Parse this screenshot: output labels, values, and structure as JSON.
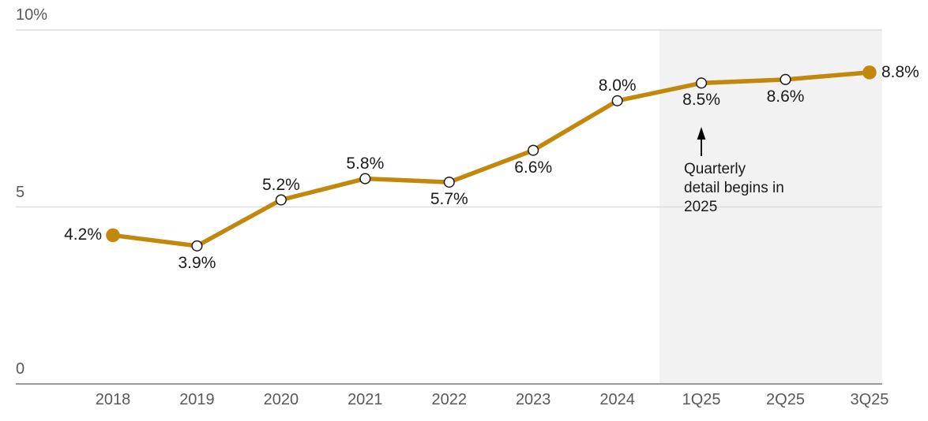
{
  "chart_data": {
    "type": "line",
    "title": "",
    "xlabel": "",
    "ylabel": "",
    "categories": [
      "2018",
      "2019",
      "2020",
      "2021",
      "2022",
      "2023",
      "2024",
      "1Q25",
      "2Q25",
      "3Q25"
    ],
    "values": [
      4.2,
      3.9,
      5.2,
      5.8,
      5.7,
      6.6,
      8.0,
      8.5,
      8.6,
      8.8
    ],
    "points": [
      {
        "category": "2018",
        "value": 4.2,
        "label": "4.2%",
        "label_placement": "left",
        "marker": "filled"
      },
      {
        "category": "2019",
        "value": 3.9,
        "label": "3.9%",
        "label_placement": "below",
        "marker": "open"
      },
      {
        "category": "2020",
        "value": 5.2,
        "label": "5.2%",
        "label_placement": "above",
        "marker": "open"
      },
      {
        "category": "2021",
        "value": 5.8,
        "label": "5.8%",
        "label_placement": "above",
        "marker": "open"
      },
      {
        "category": "2022",
        "value": 5.7,
        "label": "5.7%",
        "label_placement": "below",
        "marker": "open"
      },
      {
        "category": "2023",
        "value": 6.6,
        "label": "6.6%",
        "label_placement": "below",
        "marker": "open"
      },
      {
        "category": "2024",
        "value": 8.0,
        "label": "8.0%",
        "label_placement": "above",
        "marker": "open"
      },
      {
        "category": "1Q25",
        "value": 8.5,
        "label": "8.5%",
        "label_placement": "below",
        "marker": "open"
      },
      {
        "category": "2Q25",
        "value": 8.6,
        "label": "8.6%",
        "label_placement": "below",
        "marker": "open"
      },
      {
        "category": "3Q25",
        "value": 8.8,
        "label": "8.8%",
        "label_placement": "right",
        "marker": "filled"
      }
    ],
    "ylim": [
      0,
      10
    ],
    "yticks": [
      {
        "value": 0,
        "label": "0"
      },
      {
        "value": 5,
        "label": "5"
      },
      {
        "value": 10,
        "label": "10%"
      }
    ],
    "grid": "horizontal",
    "legend": "none",
    "shaded_region": {
      "covers_categories": [
        "1Q25",
        "2Q25",
        "3Q25"
      ],
      "starts_half_step_before": "1Q25",
      "color": "#F2F2F2"
    },
    "annotation": {
      "text": "Quarterly detail begins in 2025",
      "lines": [
        "Quarterly",
        "detail begins in",
        "2025"
      ],
      "arrow": "up",
      "points_at": "1Q25"
    },
    "colors": {
      "line": "#C1880C",
      "marker_open_fill": "#FFFFFF",
      "marker_stroke": "#1A1A1A",
      "gridline": "#DCDCDC",
      "axis_line": "#7A7A7A",
      "tick_label": "#595959",
      "data_label": "#1A1A1A",
      "annotation_text": "#1A1A1A",
      "shade": "#F2F2F2"
    }
  }
}
